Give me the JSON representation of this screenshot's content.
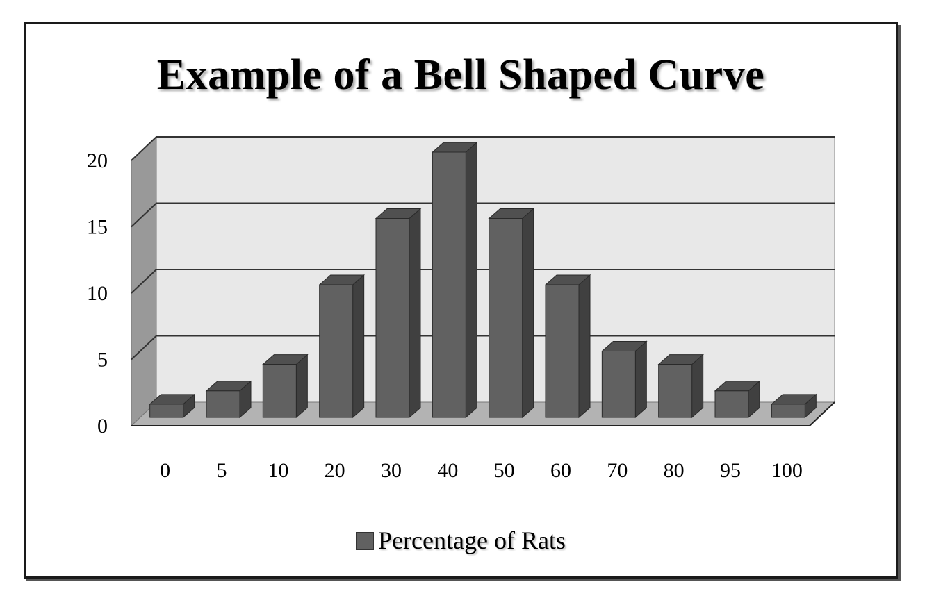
{
  "chart_data": {
    "type": "bar",
    "title": "Example of a Bell Shaped Curve",
    "categories": [
      "0",
      "5",
      "10",
      "20",
      "30",
      "40",
      "50",
      "60",
      "70",
      "80",
      "95",
      "100"
    ],
    "series": [
      {
        "name": "Percentage of Rats",
        "values": [
          1,
          2,
          4,
          10,
          15,
          20,
          15,
          10,
          5,
          4,
          2,
          1
        ]
      }
    ],
    "ylim": [
      0,
      20
    ],
    "yticks": [
      "0",
      "5",
      "10",
      "15",
      "20"
    ],
    "grid": true,
    "legend": "bottom-center",
    "style": "3d-column"
  },
  "colors": {
    "bar_front": "#616161",
    "bar_side": "#404040",
    "bar_top": "#505050",
    "wall_back": "#e8e8e8",
    "wall_side": "#999999",
    "floor": "#b3b3b3"
  }
}
